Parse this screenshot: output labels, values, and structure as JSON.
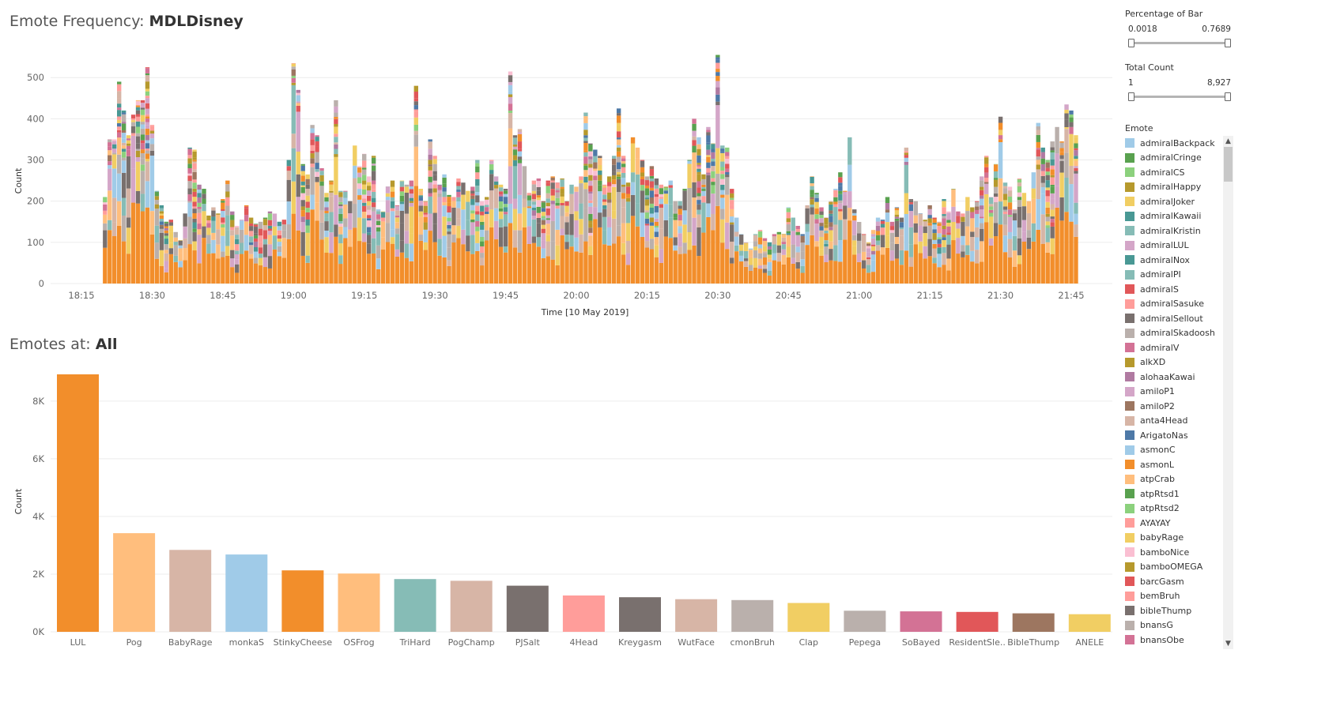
{
  "header": {
    "title_prefix": "Emote Frequency:",
    "title_channel": "MDLDisney"
  },
  "bar_section": {
    "title_prefix": "Emotes at:",
    "title_value": "All"
  },
  "filters": {
    "percentage": {
      "title": "Percentage of Bar",
      "min": "0.0018",
      "max": "0.7689",
      "low_position": 0,
      "high_position": 1
    },
    "total_count": {
      "title": "Total Count",
      "min": "1",
      "max": "8,927",
      "low_position": 0,
      "high_position": 1
    }
  },
  "legend": {
    "title": "Emote",
    "items": [
      {
        "label": "admiralBackpack",
        "color": "#a0cbe8"
      },
      {
        "label": "admiralCringe",
        "color": "#59a14f"
      },
      {
        "label": "admiralCS",
        "color": "#8cd17d"
      },
      {
        "label": "admiralHappy",
        "color": "#b6992d"
      },
      {
        "label": "admiralJoker",
        "color": "#f1ce63"
      },
      {
        "label": "admiralKawaii",
        "color": "#499894"
      },
      {
        "label": "admiralKristin",
        "color": "#86bcb6"
      },
      {
        "label": "admiralLUL",
        "color": "#d4a6c8"
      },
      {
        "label": "admiralNox",
        "color": "#499894"
      },
      {
        "label": "admiralPI",
        "color": "#86bcb6"
      },
      {
        "label": "admiralS",
        "color": "#e15759"
      },
      {
        "label": "admiralSasuke",
        "color": "#ff9d9a"
      },
      {
        "label": "admiralSellout",
        "color": "#79706e"
      },
      {
        "label": "admiralSkadoosh",
        "color": "#bab0ac"
      },
      {
        "label": "admiralV",
        "color": "#d37295"
      },
      {
        "label": "alkXD",
        "color": "#b6992d"
      },
      {
        "label": "alohaaKawai",
        "color": "#b07aa1"
      },
      {
        "label": "amiloP1",
        "color": "#d4a6c8"
      },
      {
        "label": "amiloP2",
        "color": "#9d7660"
      },
      {
        "label": "anta4Head",
        "color": "#d7b5a6"
      },
      {
        "label": "ArigatoNas",
        "color": "#4e79a7"
      },
      {
        "label": "asmonC",
        "color": "#a0cbe8"
      },
      {
        "label": "asmonL",
        "color": "#f28e2b"
      },
      {
        "label": "atpCrab",
        "color": "#ffbe7d"
      },
      {
        "label": "atpRtsd1",
        "color": "#59a14f"
      },
      {
        "label": "atpRtsd2",
        "color": "#8cd17d"
      },
      {
        "label": "AYAYAY",
        "color": "#ff9d9a"
      },
      {
        "label": "babyRage",
        "color": "#f1ce63"
      },
      {
        "label": "bamboNice",
        "color": "#fabfd2"
      },
      {
        "label": "bamboOMEGA",
        "color": "#b6992d"
      },
      {
        "label": "barcGasm",
        "color": "#e15759"
      },
      {
        "label": "bemBruh",
        "color": "#ff9d9a"
      },
      {
        "label": "bibleThump",
        "color": "#79706e"
      },
      {
        "label": "bnansG",
        "color": "#bab0ac"
      },
      {
        "label": "bnansObe",
        "color": "#d37295"
      }
    ]
  },
  "chart_data": [
    {
      "type": "bar",
      "stacked": true,
      "title": "Emote Frequency: MDLDisney",
      "xlabel": "Time [10 May 2019]",
      "ylabel": "Count",
      "x_ticks": [
        "18:15",
        "18:30",
        "18:45",
        "19:00",
        "19:15",
        "19:30",
        "19:45",
        "20:00",
        "20:15",
        "20:30",
        "20:45",
        "21:00",
        "21:15",
        "21:30",
        "21:45"
      ],
      "y_ticks": [
        0,
        100,
        200,
        300,
        400,
        500
      ],
      "ylim": [
        0,
        560
      ],
      "x_range_minutes": [
        1086,
        1313
      ],
      "grid": "horizontal",
      "note_dominant_series": "asmonL",
      "totals": [
        {
          "t": "18:20",
          "v": 210
        },
        {
          "t": "18:21",
          "v": 350
        },
        {
          "t": "18:22",
          "v": 350
        },
        {
          "t": "18:23",
          "v": 490
        },
        {
          "t": "18:24",
          "v": 420
        },
        {
          "t": "18:25",
          "v": 360
        },
        {
          "t": "18:26",
          "v": 410
        },
        {
          "t": "18:27",
          "v": 445
        },
        {
          "t": "18:28",
          "v": 445
        },
        {
          "t": "18:29",
          "v": 525
        },
        {
          "t": "18:30",
          "v": 385
        },
        {
          "t": "18:31",
          "v": 225
        },
        {
          "t": "18:32",
          "v": 190
        },
        {
          "t": "18:33",
          "v": 150
        },
        {
          "t": "18:34",
          "v": 155
        },
        {
          "t": "18:35",
          "v": 125
        },
        {
          "t": "18:36",
          "v": 105
        },
        {
          "t": "18:37",
          "v": 170
        },
        {
          "t": "18:38",
          "v": 330
        },
        {
          "t": "18:39",
          "v": 325
        },
        {
          "t": "18:40",
          "v": 240
        },
        {
          "t": "18:41",
          "v": 230
        },
        {
          "t": "18:42",
          "v": 165
        },
        {
          "t": "18:43",
          "v": 185
        },
        {
          "t": "18:44",
          "v": 170
        },
        {
          "t": "18:45",
          "v": 205
        },
        {
          "t": "18:46",
          "v": 250
        },
        {
          "t": "18:47",
          "v": 175
        },
        {
          "t": "18:48",
          "v": 140
        },
        {
          "t": "18:49",
          "v": 155
        },
        {
          "t": "18:50",
          "v": 190
        },
        {
          "t": "18:51",
          "v": 160
        },
        {
          "t": "18:52",
          "v": 145
        },
        {
          "t": "18:53",
          "v": 150
        },
        {
          "t": "18:54",
          "v": 160
        },
        {
          "t": "18:55",
          "v": 175
        },
        {
          "t": "18:56",
          "v": 170
        },
        {
          "t": "18:57",
          "v": 150
        },
        {
          "t": "18:58",
          "v": 155
        },
        {
          "t": "18:59",
          "v": 300
        },
        {
          "t": "19:00",
          "v": 535
        },
        {
          "t": "19:01",
          "v": 470
        },
        {
          "t": "19:02",
          "v": 290
        },
        {
          "t": "19:03",
          "v": 265
        },
        {
          "t": "19:04",
          "v": 385
        },
        {
          "t": "19:05",
          "v": 360
        },
        {
          "t": "19:06",
          "v": 280
        },
        {
          "t": "19:07",
          "v": 220
        },
        {
          "t": "19:08",
          "v": 250
        },
        {
          "t": "19:09",
          "v": 445
        },
        {
          "t": "19:10",
          "v": 225
        },
        {
          "t": "19:11",
          "v": 225
        },
        {
          "t": "19:12",
          "v": 200
        },
        {
          "t": "19:13",
          "v": 335
        },
        {
          "t": "19:14",
          "v": 285
        },
        {
          "t": "19:15",
          "v": 315
        },
        {
          "t": "19:16",
          "v": 260
        },
        {
          "t": "19:17",
          "v": 310
        },
        {
          "t": "19:18",
          "v": 180
        },
        {
          "t": "19:19",
          "v": 175
        },
        {
          "t": "19:20",
          "v": 235
        },
        {
          "t": "19:21",
          "v": 250
        },
        {
          "t": "19:22",
          "v": 190
        },
        {
          "t": "19:23",
          "v": 250
        },
        {
          "t": "19:24",
          "v": 240
        },
        {
          "t": "19:25",
          "v": 250
        },
        {
          "t": "19:26",
          "v": 480
        },
        {
          "t": "19:27",
          "v": 230
        },
        {
          "t": "19:28",
          "v": 200
        },
        {
          "t": "19:29",
          "v": 350
        },
        {
          "t": "19:30",
          "v": 310
        },
        {
          "t": "19:31",
          "v": 240
        },
        {
          "t": "19:32",
          "v": 265
        },
        {
          "t": "19:33",
          "v": 215
        },
        {
          "t": "19:34",
          "v": 210
        },
        {
          "t": "19:35",
          "v": 255
        },
        {
          "t": "19:36",
          "v": 245
        },
        {
          "t": "19:37",
          "v": 225
        },
        {
          "t": "19:38",
          "v": 235
        },
        {
          "t": "19:39",
          "v": 300
        },
        {
          "t": "19:40",
          "v": 200
        },
        {
          "t": "19:41",
          "v": 210
        },
        {
          "t": "19:42",
          "v": 300
        },
        {
          "t": "19:43",
          "v": 260
        },
        {
          "t": "19:44",
          "v": 240
        },
        {
          "t": "19:45",
          "v": 230
        },
        {
          "t": "19:46",
          "v": 515
        },
        {
          "t": "19:47",
          "v": 360
        },
        {
          "t": "19:48",
          "v": 375
        },
        {
          "t": "19:49",
          "v": 285
        },
        {
          "t": "19:50",
          "v": 220
        },
        {
          "t": "19:51",
          "v": 250
        },
        {
          "t": "19:52",
          "v": 255
        },
        {
          "t": "19:53",
          "v": 200
        },
        {
          "t": "19:54",
          "v": 250
        },
        {
          "t": "19:55",
          "v": 260
        },
        {
          "t": "19:56",
          "v": 245
        },
        {
          "t": "19:57",
          "v": 255
        },
        {
          "t": "19:58",
          "v": 200
        },
        {
          "t": "19:59",
          "v": 240
        },
        {
          "t": "20:00",
          "v": 235
        },
        {
          "t": "20:01",
          "v": 260
        },
        {
          "t": "20:02",
          "v": 415
        },
        {
          "t": "20:03",
          "v": 340
        },
        {
          "t": "20:04",
          "v": 325
        },
        {
          "t": "20:05",
          "v": 310
        },
        {
          "t": "20:06",
          "v": 240
        },
        {
          "t": "20:07",
          "v": 260
        },
        {
          "t": "20:08",
          "v": 310
        },
        {
          "t": "20:09",
          "v": 425
        },
        {
          "t": "20:10",
          "v": 310
        },
        {
          "t": "20:11",
          "v": 245
        },
        {
          "t": "20:12",
          "v": 355
        },
        {
          "t": "20:13",
          "v": 330
        },
        {
          "t": "20:14",
          "v": 300
        },
        {
          "t": "20:15",
          "v": 260
        },
        {
          "t": "20:16",
          "v": 285
        },
        {
          "t": "20:17",
          "v": 255
        },
        {
          "t": "20:18",
          "v": 240
        },
        {
          "t": "20:19",
          "v": 235
        },
        {
          "t": "20:20",
          "v": 250
        },
        {
          "t": "20:21",
          "v": 200
        },
        {
          "t": "20:22",
          "v": 200
        },
        {
          "t": "20:23",
          "v": 230
        },
        {
          "t": "20:24",
          "v": 300
        },
        {
          "t": "20:25",
          "v": 400
        },
        {
          "t": "20:26",
          "v": 355
        },
        {
          "t": "20:27",
          "v": 265
        },
        {
          "t": "20:28",
          "v": 380
        },
        {
          "t": "20:29",
          "v": 340
        },
        {
          "t": "20:30",
          "v": 555
        },
        {
          "t": "20:31",
          "v": 335
        },
        {
          "t": "20:32",
          "v": 330
        },
        {
          "t": "20:33",
          "v": 230
        },
        {
          "t": "20:34",
          "v": 160
        },
        {
          "t": "20:35",
          "v": 120
        },
        {
          "t": "20:36",
          "v": 100
        },
        {
          "t": "20:37",
          "v": 85
        },
        {
          "t": "20:38",
          "v": 120
        },
        {
          "t": "20:39",
          "v": 130
        },
        {
          "t": "20:40",
          "v": 110
        },
        {
          "t": "20:41",
          "v": 100
        },
        {
          "t": "20:42",
          "v": 120
        },
        {
          "t": "20:43",
          "v": 125
        },
        {
          "t": "20:44",
          "v": 120
        },
        {
          "t": "20:45",
          "v": 185
        },
        {
          "t": "20:46",
          "v": 160
        },
        {
          "t": "20:47",
          "v": 140
        },
        {
          "t": "20:48",
          "v": 120
        },
        {
          "t": "20:49",
          "v": 190
        },
        {
          "t": "20:50",
          "v": 260
        },
        {
          "t": "20:51",
          "v": 220
        },
        {
          "t": "20:52",
          "v": 185
        },
        {
          "t": "20:53",
          "v": 160
        },
        {
          "t": "20:54",
          "v": 200
        },
        {
          "t": "20:55",
          "v": 230
        },
        {
          "t": "20:56",
          "v": 270
        },
        {
          "t": "20:57",
          "v": 225
        },
        {
          "t": "20:58",
          "v": 355
        },
        {
          "t": "20:59",
          "v": 180
        },
        {
          "t": "21:00",
          "v": 150
        },
        {
          "t": "21:01",
          "v": 120
        },
        {
          "t": "21:02",
          "v": 100
        },
        {
          "t": "21:03",
          "v": 130
        },
        {
          "t": "21:04",
          "v": 160
        },
        {
          "t": "21:05",
          "v": 155
        },
        {
          "t": "21:06",
          "v": 210
        },
        {
          "t": "21:07",
          "v": 150
        },
        {
          "t": "21:08",
          "v": 185
        },
        {
          "t": "21:09",
          "v": 160
        },
        {
          "t": "21:10",
          "v": 330
        },
        {
          "t": "21:11",
          "v": 205
        },
        {
          "t": "21:12",
          "v": 200
        },
        {
          "t": "21:13",
          "v": 170
        },
        {
          "t": "21:14",
          "v": 155
        },
        {
          "t": "21:15",
          "v": 190
        },
        {
          "t": "21:16",
          "v": 160
        },
        {
          "t": "21:17",
          "v": 150
        },
        {
          "t": "21:18",
          "v": 205
        },
        {
          "t": "21:19",
          "v": 175
        },
        {
          "t": "21:20",
          "v": 230
        },
        {
          "t": "21:21",
          "v": 175
        },
        {
          "t": "21:22",
          "v": 170
        },
        {
          "t": "21:23",
          "v": 210
        },
        {
          "t": "21:24",
          "v": 185
        },
        {
          "t": "21:25",
          "v": 200
        },
        {
          "t": "21:26",
          "v": 260
        },
        {
          "t": "21:27",
          "v": 310
        },
        {
          "t": "21:28",
          "v": 210
        },
        {
          "t": "21:29",
          "v": 290
        },
        {
          "t": "21:30",
          "v": 405
        },
        {
          "t": "21:31",
          "v": 245
        },
        {
          "t": "21:32",
          "v": 235
        },
        {
          "t": "21:33",
          "v": 180
        },
        {
          "t": "21:34",
          "v": 255
        },
        {
          "t": "21:35",
          "v": 220
        },
        {
          "t": "21:36",
          "v": 200
        },
        {
          "t": "21:37",
          "v": 270
        },
        {
          "t": "21:38",
          "v": 390
        },
        {
          "t": "21:39",
          "v": 330
        },
        {
          "t": "21:40",
          "v": 300
        },
        {
          "t": "21:41",
          "v": 345
        },
        {
          "t": "21:42",
          "v": 380
        },
        {
          "t": "21:43",
          "v": 345
        },
        {
          "t": "21:44",
          "v": 435
        },
        {
          "t": "21:45",
          "v": 420
        },
        {
          "t": "21:46",
          "v": 360
        }
      ]
    },
    {
      "type": "bar",
      "title": "Emotes at: All",
      "xlabel": "",
      "ylabel": "Count",
      "y_ticks": [
        "0K",
        "2K",
        "4K",
        "6K",
        "8K"
      ],
      "ylim": [
        0,
        9200
      ],
      "grid": "horizontal",
      "categories": [
        "LUL",
        "Pog",
        "BabyRage",
        "monkaS",
        "StinkyCheese",
        "OSFrog",
        "TriHard",
        "PogChamp",
        "PJSalt",
        "4Head",
        "Kreygasm",
        "WutFace",
        "cmonBruh",
        "Clap",
        "Pepega",
        "SoBayed",
        "ResidentSle..",
        "BibleThump",
        "ANELE"
      ],
      "values": [
        8927,
        3420,
        2840,
        2680,
        2130,
        2020,
        1830,
        1770,
        1600,
        1260,
        1200,
        1130,
        1100,
        1000,
        730,
        710,
        690,
        640,
        610
      ],
      "colors": [
        "#f28e2b",
        "#ffbe7d",
        "#d7b5a6",
        "#a0cbe8",
        "#f28e2b",
        "#ffbe7d",
        "#86bcb6",
        "#d7b5a6",
        "#79706e",
        "#ff9d9a",
        "#79706e",
        "#d7b5a6",
        "#bab0ac",
        "#f1ce63",
        "#bab0ac",
        "#d37295",
        "#e15759",
        "#9d7660",
        "#f1ce63"
      ]
    }
  ]
}
